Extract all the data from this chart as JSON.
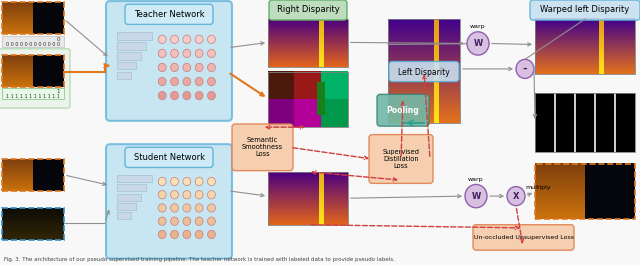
{
  "caption": "Fig. 3. The architecture of our pseudo supervised training pipeline. The teacher network is trained with labeled data to provide pseudo labels.",
  "bg_color": "#f0f0f0",
  "teacher_network_label": "Teacher Network",
  "student_network_label": "Student Network",
  "right_disparity_label": "Right Disparity",
  "left_disparity_label": "Left Disparity",
  "warped_left_label": "Warped left Disparity",
  "semantic_loss_label": "Semantic\nSmoothness\nLoss",
  "distillation_loss_label": "Supervised\nDistillation\nLoss",
  "unsupervised_loss_label": "Un-occluded Unsupervised Loss",
  "pooling_label": "Pooling",
  "warp_label": "warp",
  "multiply_label": "multiply",
  "w_label": "W",
  "x_label": "X",
  "minus_label": "-",
  "network_box_color": "#b8dff0",
  "network_box_edge": "#5ab0d8",
  "right_disp_label_bg": "#b8dab8",
  "right_disp_label_edge": "#5aaa5a",
  "warped_label_bg": "#b8dff0",
  "warped_label_edge": "#5ab0d8",
  "loss_bg": "#f5cba7",
  "loss_edge": "#e08050",
  "pooling_bg": "#70b8a8",
  "pooling_edge": "#3a8878",
  "circle_fill": "#d8c0e0",
  "circle_edge": "#9060b0",
  "arrow_gray": "#909090",
  "arrow_orange": "#e07820",
  "arrow_red": "#d04040",
  "arrow_teal": "#30a090"
}
